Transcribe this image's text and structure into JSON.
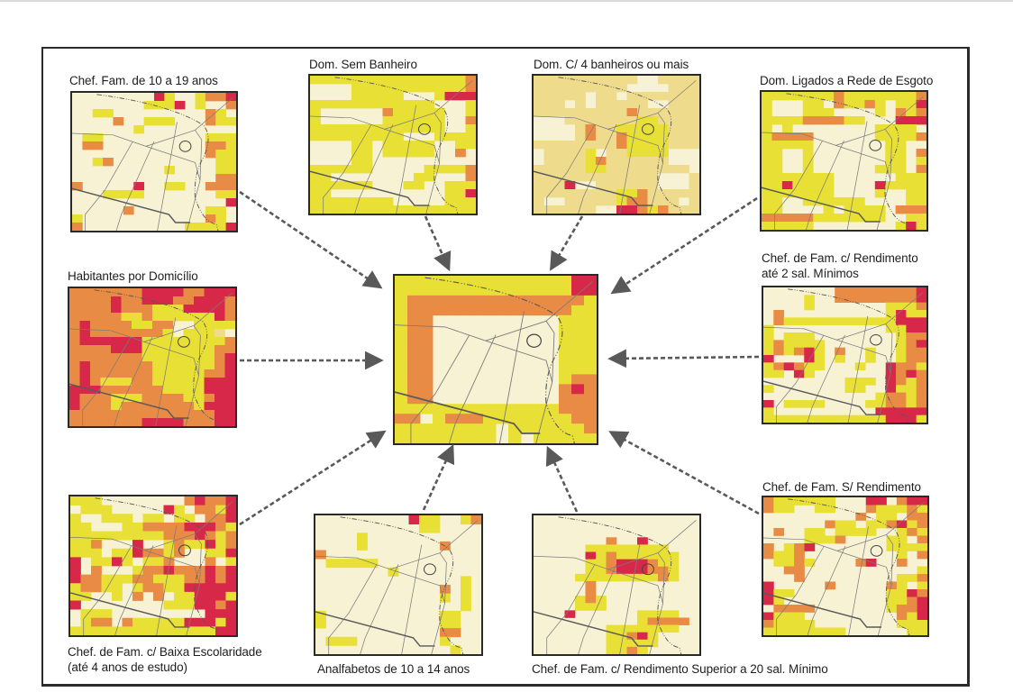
{
  "figure": {
    "palette": {
      "0": "#f7f2d4",
      "1": "#e8e035",
      "2": "#e88b45",
      "3": "#d8284a",
      "4": "#eedc8c"
    },
    "line_color": "#7a7a7a",
    "road_color": "#5a5a5a",
    "arrow_color": "#595959",
    "center_map": {
      "id": "composite",
      "title": "",
      "cells": [
        "1111111111111133",
        "1111111111111133",
        "1222222222222221",
        "1222222222222211",
        "1220000000000111",
        "1220000000000111",
        "1220000000000111",
        "1220000000000111",
        "1220000000000111",
        "1220000000000111",
        "1220000000000122",
        "1220000000000232",
        "1220000000000222",
        "1111111111111222",
        "2201222111111122",
        "1111111101111112",
        "1111111101011111"
      ]
    },
    "maps": [
      {
        "id": "chef-fam-10-19",
        "title": [
          "Chef. Fam. de 10 a 19 anos"
        ],
        "cells": [
          "0000000031001223",
          "0000000111301002",
          "0011000000000210",
          "0000200111000211",
          "0000001000000000",
          "0110000000000111",
          "0220000000000221",
          "0000000000000211",
          "0012000000000011",
          "0000000001000011",
          "0000000000000022",
          "2000003001100222",
          "0001111000000011",
          "0000000000000003",
          "0000020000000110",
          "1000000000000210",
          "2000000000011113"
        ]
      },
      {
        "id": "dom-sem-banheiro",
        "title": [
          "Dom. Sem Banheiro"
        ],
        "cells": [
          "1111111111111112",
          "0000111111111112",
          "0000111110001333",
          "1111111111110001",
          "1000000211111001",
          "1000000111111002",
          "1111111111111001",
          "1111111110001111",
          "0000110111110011",
          "0000110111110020",
          "0000110000000000",
          "1111110000011112",
          "1100000000110002",
          "1111110001100111",
          "1100000000000113",
          "1111111100000111",
          "1111111111111111"
        ]
      },
      {
        "id": "dom-4-banheiros",
        "title": [
          "Dom. C/ 4 banheiros ou mais"
        ],
        "cells": [
          "4444444444004444",
          "4444444440000444",
          "4444404404444444",
          "4440404444400444",
          "4444444442444444",
          "0004444444114444",
          "0000424411111444",
          "0000424421111444",
          "4444444421111444",
          "0444410441111000",
          "0444412444444000",
          "4444411444444440",
          "4444444444440004",
          "4443004444440004",
          "4444444411244444",
          "4004444412244404",
          "4444440033212444"
        ]
      },
      {
        "id": "dom-rede-esgoto",
        "title": [
          "Dom. Ligados a Rede de Esgoto"
        ],
        "cells": [
          "1111111211111112",
          "1000110211210113",
          "1000111000010212",
          "1111222211000333",
          "1010000000011110",
          "1222200000011112",
          "1111100000001100",
          "1100100000001102",
          "1100100000001101",
          "1100100000011102",
          "1111111000000111",
          "1131111000031111",
          "1111111000010011",
          "1100111111000011",
          "1100001011110222",
          "2222211111110011",
          "1111100000000131"
        ]
      },
      {
        "id": "habitantes-domicilio",
        "title": [
          "Habitantes por Domicílio"
        ],
        "cells": [
          "2222222333322333",
          "2222322333223332",
          "2222322211133332",
          "2222211211111132",
          "2322221122001111",
          "2322222221011140",
          "2333333111111112",
          "2222333111111122",
          "2222222111111123",
          "2322222211111123",
          "2322222211111223",
          "2321112211111333",
          "3332222221111333",
          "3222111222211233",
          "3222122222221333",
          "2222222222222233",
          "2222222333322233"
        ]
      },
      {
        "id": "rendimento-ate-2-sm",
        "title": [
          "Chef. de Fam. c/ Rendimento",
          "até 2 sal. Mínimos"
        ],
        "cells": [
          "0000000222222223",
          "0000100222222223",
          "0000100000001112",
          "0200000000001311",
          "0211111111111333",
          "1000000000001133",
          "1011100000000122",
          "1211110000000123",
          "1212310200100122",
          "3000310100100122",
          "1232110001003221",
          "1103100000003232",
          "0000000011103212",
          "1000000011003112",
          "0000000000012212",
          "3011110000112212",
          "1000000000033333",
          "1111111111113331"
        ]
      },
      {
        "id": "baixa-escolaridade",
        "title": [
          "Chef. de Fam. c/ Baixa Escolaridade",
          "(até 4 anos de estudo)"
        ],
        "cells": [
          "1110000000023223",
          "0111000003102213",
          "1001110110110223",
          "1100011222233321",
          "1111111112223212",
          "1120003001211312",
          "1110113221200113",
          "3011310112000201",
          "3020001223222323",
          "3221112211122323",
          "1221101221133333",
          "1100102020113331",
          "3000000001113323",
          "0111000000000333",
          "0122021111133313",
          "1111111111111133"
        ]
      },
      {
        "id": "analfabetos-10-14",
        "title": [
          "Analfabetos de 10 a 14 anos"
        ],
        "cells": [
          "0000000003110012",
          "0000000000110000",
          "0000100000000000",
          "0000100000002000",
          "2000000000000000",
          "0111110000000000",
          "0000000100000000",
          "0000000000000010",
          "0000000000002010",
          "0000000000001010",
          "0000000000000010",
          "1000000000001100",
          "1000000000001100",
          "0000000000002200",
          "0111000000001000",
          "0000000000000100"
        ]
      },
      {
        "id": "rendimento-superior-20-sm",
        "title": [
          "Chef. de Fam. c/ Rendimento Superior a 20 sal. Mínimo"
        ],
        "cells": [
          "0000000000000000",
          "0000000000000000",
          "0000000000000000",
          "0000000200300000",
          "0000011111111000",
          "0000031211111100",
          "0000011233321100",
          "0000011233322100",
          "0000111111112100",
          "0000020000000000",
          "0000020000000000",
          "0000121000000000",
          "0000111000000000",
          "0003000000111100",
          "0000000000122220",
          "0000000111111100",
          "0000000112310000",
          "0000000111110000",
          "0000000112100000"
        ]
      },
      {
        "id": "sem-rendimento",
        "title": [
          "Chef. de Fam. S/ Rendimento"
        ],
        "cells": [
          "2111111000330233",
          "2110011000211121",
          "0000000002011022",
          "0000002110112312",
          "0200110111100121",
          "0000111200001102",
          "2012300000001111",
          "2112000000000102",
          "0112100002300200",
          "0022000000000001",
          "0002000000000112",
          "3000002000002101",
          "3110000000001132",
          "3100000000001123",
          "0222200000001223",
          "3111000000000213",
          "2111100000000111",
          "1111111100000011"
        ]
      }
    ]
  }
}
